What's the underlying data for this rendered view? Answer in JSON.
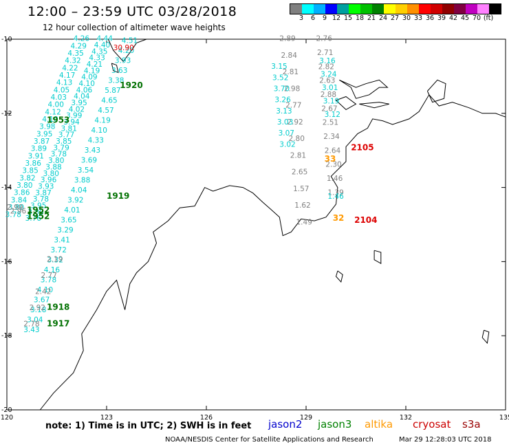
{
  "header": {
    "title": "12:00 – 23:59 UTC 03/28/2018",
    "subtitle": "12 hour collection of altimeter wave heights"
  },
  "color_scale": {
    "colors": [
      "#808080",
      "#00ffff",
      "#00b0ff",
      "#0000ff",
      "#00a0a0",
      "#00ff00",
      "#00c000",
      "#008000",
      "#ffff00",
      "#ffd000",
      "#ff9000",
      "#ff0000",
      "#d00000",
      "#900000",
      "#800040",
      "#c000c0",
      "#ff80ff",
      "#000000"
    ],
    "labels": [
      "3",
      "6",
      "9",
      "12",
      "15",
      "18",
      "21",
      "24",
      "27",
      "30",
      "33",
      "36",
      "39",
      "42",
      "45",
      "70",
      "(ft)"
    ]
  },
  "axes": {
    "lon_labels": [
      "120",
      "123",
      "126",
      "129",
      "132",
      "135"
    ],
    "lat_labels": [
      "-10",
      "-12",
      "-14",
      "-16",
      "-18",
      "-20"
    ]
  },
  "pass_labels": [
    {
      "text": "1920",
      "color": "#007000",
      "lon": 123.4,
      "lat": -11.32
    },
    {
      "text": "1953",
      "color": "#007000",
      "lon": 121.2,
      "lat": -12.25
    },
    {
      "text": "1919",
      "color": "#007000",
      "lon": 123.0,
      "lat": -14.3
    },
    {
      "text": "1952",
      "color": "#007000",
      "lon": 120.6,
      "lat": -14.68
    },
    {
      "text": "1952",
      "color": "#007000",
      "lon": 120.6,
      "lat": -14.85
    },
    {
      "text": "1918",
      "color": "#007000",
      "lon": 121.2,
      "lat": -17.3
    },
    {
      "text": "1917",
      "color": "#007000",
      "lon": 121.2,
      "lat": -17.75
    },
    {
      "text": "2105",
      "color": "#dd0000",
      "lon": 130.35,
      "lat": -13.0
    },
    {
      "text": "2104",
      "color": "#dd0000",
      "lon": 130.45,
      "lat": -14.95
    },
    {
      "text": "33",
      "color": "#ff9900",
      "lon": 129.55,
      "lat": -13.3
    },
    {
      "text": "32",
      "color": "#ff9900",
      "lon": 129.8,
      "lat": -14.9
    }
  ],
  "tracks": [
    {
      "name": "track-a",
      "color": "#00cccc",
      "lon_start": 122.7,
      "lat_start": -10.05,
      "lon_end": 120.55,
      "lat_end": -14.9,
      "values": [
        "4.44",
        "4.40",
        "4.35",
        "4.33",
        "4.21",
        "4.19",
        "4.09",
        "4.10",
        "4.06",
        "4.04",
        "3.95",
        "4.02",
        "3.99",
        "3.94",
        "3.81",
        "3.77",
        "3.85",
        "3.79",
        "3.78",
        "3.80",
        "3.88",
        "3.80",
        "3.96",
        "3.93",
        "3.87",
        "3.78",
        "3.95",
        "3.80",
        "3.76"
      ]
    },
    {
      "name": "track-b",
      "color": "#00cccc",
      "lon_start": 122.0,
      "lat_start": -10.05,
      "lon_end": 119.95,
      "lat_end": -14.8,
      "values": [
        "4.26",
        "4.29",
        "4.35",
        "4.32",
        "4.22",
        "4.17",
        "4.13",
        "4.05",
        "4.03",
        "4.00",
        "4.12",
        "4.10",
        "3.98",
        "3.95",
        "3.87",
        "3.89",
        "3.91",
        "3.86",
        "3.85",
        "3.82",
        "3.80",
        "3.86",
        "3.84",
        "3.80",
        "3.78"
      ]
    },
    {
      "name": "track-c",
      "color": "#00cccc",
      "lon_start": 123.45,
      "lat_start": -10.1,
      "lon_end": 120.5,
      "lat_end": -17.9,
      "values": [
        "4.51",
        "4.20",
        "3.93",
        "3.63",
        "3.38",
        "5.87",
        "4.65",
        "4.57",
        "4.19",
        "4.10",
        "4.33",
        "3.43",
        "3.69",
        "3.54",
        "3.88",
        "4.04",
        "3.92",
        "4.01",
        "3.65",
        "3.29",
        "3.41",
        "3.72",
        "3.32",
        "4.16",
        "3.78",
        "4.10",
        "3.67",
        "3.18",
        "3.04",
        "3.43"
      ]
    },
    {
      "name": "track-d",
      "color": "#808080",
      "lon_start": 121.2,
      "lat_start": -16.0,
      "lon_end": 120.5,
      "lat_end": -17.75,
      "values": [
        "2.19",
        "2.77",
        "2.42",
        "2.92",
        "2.78"
      ]
    },
    {
      "name": "track-e",
      "color": "#808080",
      "lon_start": 120.0,
      "lat_start": -14.6,
      "lon_end": 120.1,
      "lat_end": -14.7,
      "values": [
        "2.99",
        "2.96"
      ]
    },
    {
      "name": "track-f",
      "color": "#808080",
      "lon_start": 128.2,
      "lat_start": -10.05,
      "lon_end": 128.7,
      "lat_end": -15.0,
      "values": [
        "2.89",
        "2.84",
        "2.81",
        "2.98",
        "2.77",
        "2.92",
        "2.80",
        "2.81",
        "2.65",
        "1.57",
        "1.62",
        "1.49"
      ]
    },
    {
      "name": "track-f-cyan",
      "color": "#00cccc",
      "lon_start": 127.95,
      "lat_start": -10.8,
      "lon_end": 128.2,
      "lat_end": -12.9,
      "values": [
        "3.15",
        "3.52",
        "3.70",
        "3.26",
        "3.13",
        "3.03",
        "3.07",
        "3.02"
      ]
    },
    {
      "name": "track-g",
      "color": "#808080",
      "lon_start": 129.3,
      "lat_start": -10.05,
      "lon_end": 129.65,
      "lat_end": -14.2,
      "values": [
        "2.76",
        "2.71",
        "2.82",
        "2.63",
        "2.88",
        "2.67",
        "2.51",
        "2.34",
        "2.64",
        "2.30",
        "1.46",
        "1.39"
      ]
    },
    {
      "name": "track-g-cyan",
      "color": "#00cccc",
      "lon_start": 129.4,
      "lat_start": -10.65,
      "lon_end": 129.55,
      "lat_end": -12.1,
      "values": [
        "3.16",
        "3.24",
        "3.01",
        "3.19",
        "3.12"
      ]
    },
    {
      "name": "track-g-cyan-2",
      "color": "#00cccc",
      "lon_start": 129.65,
      "lat_start": -14.3,
      "lon_end": 129.65,
      "lat_end": -14.3,
      "values": [
        "1.46"
      ]
    },
    {
      "name": "track-h",
      "color": "#dd0000",
      "lon_start": 123.2,
      "lat_start": -10.3,
      "lon_end": 123.2,
      "lat_end": -10.3,
      "values": [
        "30.90"
      ]
    }
  ],
  "coast": [
    [
      [
        121.0,
        -20.0
      ],
      [
        121.4,
        -19.55
      ],
      [
        122.0,
        -19.0
      ],
      [
        122.3,
        -18.4
      ],
      [
        122.25,
        -17.95
      ],
      [
        122.7,
        -17.3
      ],
      [
        123.0,
        -16.8
      ],
      [
        123.3,
        -16.5
      ],
      [
        123.55,
        -17.3
      ],
      [
        123.7,
        -16.6
      ],
      [
        123.9,
        -16.3
      ],
      [
        124.25,
        -16.0
      ],
      [
        124.5,
        -15.5
      ],
      [
        124.4,
        -15.2
      ],
      [
        124.85,
        -14.9
      ],
      [
        125.2,
        -14.55
      ],
      [
        125.65,
        -14.5
      ],
      [
        125.95,
        -14.0
      ],
      [
        126.2,
        -14.1
      ],
      [
        126.7,
        -13.95
      ],
      [
        127.1,
        -14.0
      ],
      [
        127.4,
        -14.15
      ],
      [
        127.7,
        -14.4
      ],
      [
        127.95,
        -14.6
      ],
      [
        128.2,
        -14.8
      ],
      [
        128.3,
        -15.3
      ],
      [
        128.55,
        -15.2
      ],
      [
        128.85,
        -14.85
      ],
      [
        129.25,
        -14.9
      ],
      [
        129.6,
        -14.8
      ],
      [
        129.9,
        -14.45
      ],
      [
        129.95,
        -14.0
      ],
      [
        129.75,
        -13.7
      ],
      [
        130.2,
        -13.3
      ],
      [
        130.2,
        -12.9
      ],
      [
        130.55,
        -12.55
      ],
      [
        130.85,
        -12.4
      ],
      [
        131.0,
        -12.15
      ],
      [
        131.3,
        -12.2
      ],
      [
        131.6,
        -12.3
      ],
      [
        132.1,
        -12.15
      ],
      [
        132.4,
        -11.95
      ],
      [
        132.7,
        -11.5
      ],
      [
        133.0,
        -11.8
      ],
      [
        133.4,
        -11.7
      ],
      [
        133.9,
        -11.85
      ],
      [
        134.3,
        -12.0
      ],
      [
        134.7,
        -12.0
      ],
      [
        135.0,
        -12.1
      ]
    ],
    [
      [
        130.0,
        -11.1
      ],
      [
        130.35,
        -11.3
      ],
      [
        130.5,
        -11.6
      ],
      [
        130.9,
        -11.5
      ],
      [
        131.2,
        -11.3
      ],
      [
        131.45,
        -11.3
      ],
      [
        131.2,
        -11.1
      ],
      [
        130.8,
        -11.2
      ],
      [
        130.5,
        -11.3
      ],
      [
        130.0,
        -11.1
      ]
    ],
    [
      [
        130.6,
        -11.75
      ],
      [
        131.05,
        -11.85
      ],
      [
        131.5,
        -11.75
      ],
      [
        131.2,
        -11.7
      ],
      [
        130.6,
        -11.75
      ]
    ],
    [
      [
        132.65,
        -11.4
      ],
      [
        132.95,
        -11.1
      ],
      [
        133.2,
        -11.2
      ],
      [
        133.15,
        -11.6
      ],
      [
        132.8,
        -11.7
      ],
      [
        132.65,
        -11.4
      ]
    ],
    [
      [
        129.9,
        -11.65
      ],
      [
        130.2,
        -11.55
      ],
      [
        130.5,
        -11.75
      ],
      [
        130.2,
        -11.9
      ],
      [
        129.9,
        -11.65
      ]
    ],
    [
      [
        134.35,
        -17.85
      ],
      [
        134.5,
        -17.9
      ],
      [
        134.45,
        -18.2
      ],
      [
        134.3,
        -18.05
      ],
      [
        134.35,
        -17.85
      ]
    ],
    [
      [
        131.05,
        -15.7
      ],
      [
        131.25,
        -15.75
      ],
      [
        131.25,
        -16.05
      ],
      [
        131.05,
        -15.95
      ],
      [
        131.05,
        -15.7
      ]
    ],
    [
      [
        129.95,
        -16.25
      ],
      [
        130.1,
        -16.35
      ],
      [
        130.05,
        -16.55
      ],
      [
        129.9,
        -16.4
      ],
      [
        129.95,
        -16.25
      ]
    ],
    [
      [
        123.05,
        -10.0
      ],
      [
        123.2,
        -10.3
      ],
      [
        123.5,
        -10.6
      ],
      [
        123.75,
        -10.3
      ],
      [
        123.9,
        -10.1
      ],
      [
        124.2,
        -10.0
      ]
    ],
    [
      [
        123.15,
        -10.65
      ],
      [
        123.3,
        -10.7
      ],
      [
        123.35,
        -10.9
      ],
      [
        123.2,
        -10.85
      ],
      [
        123.15,
        -10.65
      ]
    ]
  ],
  "footer": {
    "note": "note: 1) Time is in UTC; 2) SWH is in feet",
    "satellites": [
      {
        "name": "jason2",
        "color": "#0000cc"
      },
      {
        "name": "jason3",
        "color": "#008000"
      },
      {
        "name": "altika",
        "color": "#ff9900"
      },
      {
        "name": "cryosat",
        "color": "#cc0000"
      },
      {
        "name": "s3a",
        "color": "#990000"
      }
    ],
    "credit": "NOAA/NESDIS Center for Satellite Applications and Research",
    "generated": "Mar 29 12:28:03 UTC 2018"
  }
}
